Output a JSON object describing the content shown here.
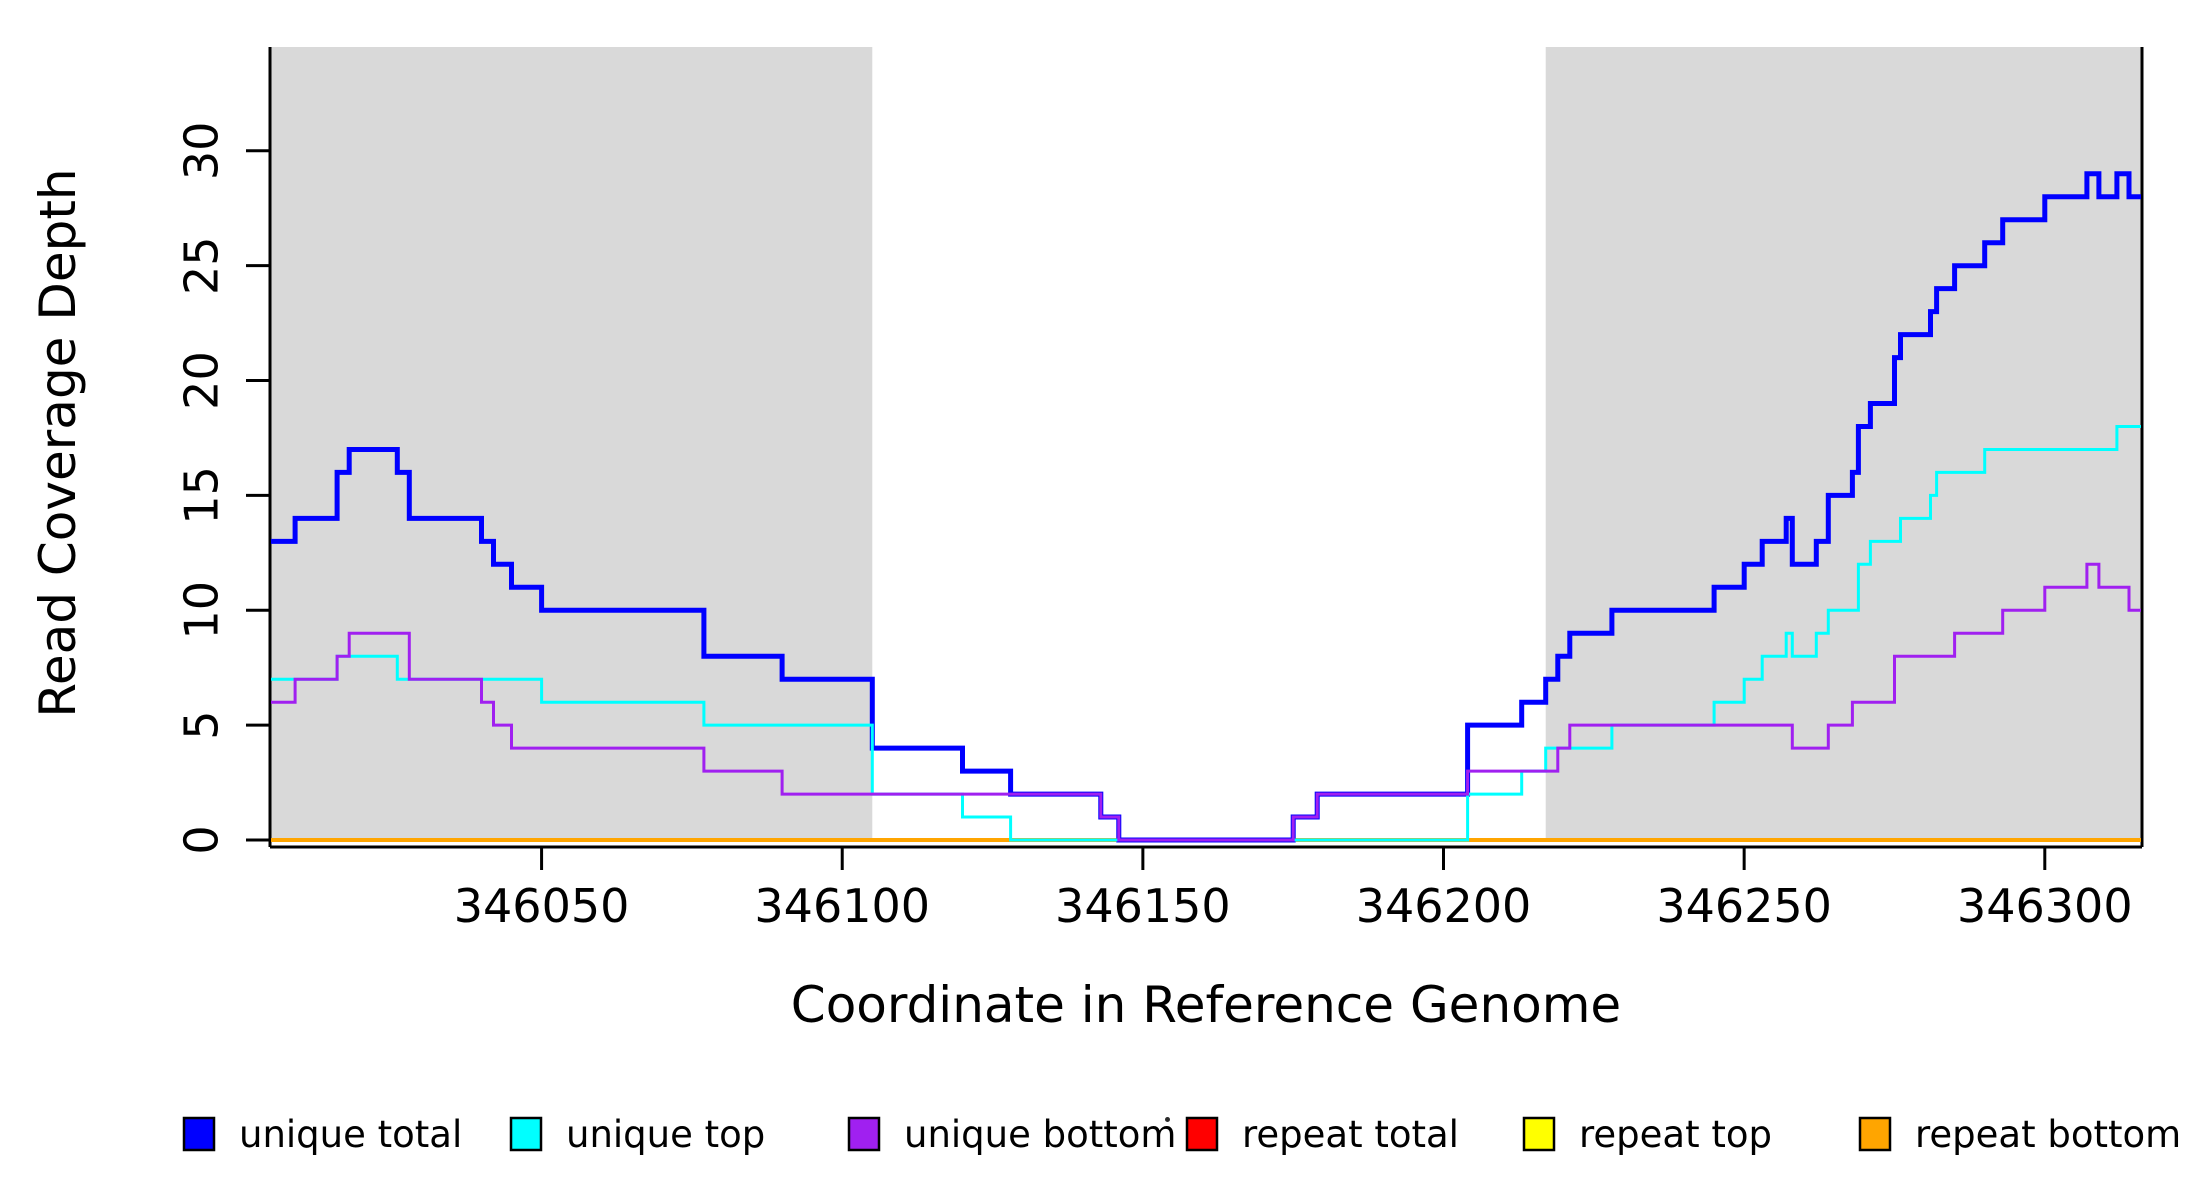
{
  "chart_data": {
    "type": "line",
    "subtype": "step",
    "title": "",
    "xlabel": "Coordinate in Reference Genome",
    "ylabel": "Read Coverage Depth",
    "x_range": [
      346005,
      346316
    ],
    "y_range": [
      0,
      34.5
    ],
    "x_ticks": [
      346050,
      346100,
      346150,
      346200,
      346250,
      346300
    ],
    "y_ticks": [
      0,
      5,
      10,
      15,
      20,
      25,
      30
    ],
    "grid": false,
    "legend_position": "bottom",
    "background_color": "#ffffff",
    "shade_color": "#d9d9d9",
    "shaded_regions": [
      {
        "from": 346005,
        "to": 346105
      },
      {
        "from": 346217,
        "to": 346316
      }
    ],
    "series": [
      {
        "name": "repeat total",
        "color": "#ff0000",
        "width": 3,
        "points": [
          [
            346005,
            0
          ]
        ]
      },
      {
        "name": "repeat top",
        "color": "#ffff00",
        "width": 3,
        "points": [
          [
            346005,
            0
          ]
        ]
      },
      {
        "name": "repeat bottom",
        "color": "#ffa500",
        "width": 4,
        "points": [
          [
            346005,
            0
          ]
        ]
      },
      {
        "name": "unique total",
        "color": "#0000ff",
        "width": 5,
        "points": [
          [
            346005,
            13
          ],
          [
            346009,
            14
          ],
          [
            346016,
            16
          ],
          [
            346018,
            17
          ],
          [
            346026,
            16
          ],
          [
            346028,
            14
          ],
          [
            346040,
            13
          ],
          [
            346042,
            12
          ],
          [
            346045,
            11
          ],
          [
            346050,
            10
          ],
          [
            346077,
            8
          ],
          [
            346090,
            7
          ],
          [
            346105,
            4
          ],
          [
            346120,
            3
          ],
          [
            346128,
            2
          ],
          [
            346143,
            1
          ],
          [
            346146,
            0
          ],
          [
            346175,
            1
          ],
          [
            346179,
            2
          ],
          [
            346204,
            5
          ],
          [
            346213,
            6
          ],
          [
            346217,
            7
          ],
          [
            346219,
            8
          ],
          [
            346221,
            9
          ],
          [
            346228,
            10
          ],
          [
            346245,
            11
          ],
          [
            346250,
            12
          ],
          [
            346253,
            13
          ],
          [
            346257,
            14
          ],
          [
            346258,
            12
          ],
          [
            346262,
            13
          ],
          [
            346264,
            15
          ],
          [
            346268,
            16
          ],
          [
            346269,
            18
          ],
          [
            346271,
            19
          ],
          [
            346275,
            21
          ],
          [
            346276,
            22
          ],
          [
            346281,
            23
          ],
          [
            346282,
            24
          ],
          [
            346285,
            25
          ],
          [
            346290,
            26
          ],
          [
            346293,
            27
          ],
          [
            346300,
            28
          ],
          [
            346307,
            29
          ],
          [
            346309,
            28
          ],
          [
            346312,
            29
          ],
          [
            346314,
            28
          ]
        ]
      },
      {
        "name": "unique top",
        "color": "#00ffff",
        "width": 3,
        "points": [
          [
            346005,
            7
          ],
          [
            346016,
            8
          ],
          [
            346026,
            7
          ],
          [
            346050,
            6
          ],
          [
            346077,
            5
          ],
          [
            346105,
            2
          ],
          [
            346120,
            1
          ],
          [
            346128,
            0
          ],
          [
            346204,
            2
          ],
          [
            346213,
            3
          ],
          [
            346217,
            4
          ],
          [
            346228,
            5
          ],
          [
            346245,
            6
          ],
          [
            346250,
            7
          ],
          [
            346253,
            8
          ],
          [
            346257,
            9
          ],
          [
            346258,
            8
          ],
          [
            346262,
            9
          ],
          [
            346264,
            10
          ],
          [
            346269,
            12
          ],
          [
            346271,
            13
          ],
          [
            346276,
            14
          ],
          [
            346281,
            15
          ],
          [
            346282,
            16
          ],
          [
            346290,
            17
          ],
          [
            346312,
            18
          ]
        ]
      },
      {
        "name": "unique bottom",
        "color": "#a020f0",
        "width": 3,
        "points": [
          [
            346005,
            6
          ],
          [
            346009,
            7
          ],
          [
            346016,
            8
          ],
          [
            346018,
            9
          ],
          [
            346028,
            7
          ],
          [
            346040,
            6
          ],
          [
            346042,
            5
          ],
          [
            346045,
            4
          ],
          [
            346077,
            3
          ],
          [
            346090,
            2
          ],
          [
            346143,
            1
          ],
          [
            346146,
            0
          ],
          [
            346175,
            1
          ],
          [
            346179,
            2
          ],
          [
            346204,
            3
          ],
          [
            346219,
            4
          ],
          [
            346221,
            5
          ],
          [
            346258,
            4
          ],
          [
            346264,
            5
          ],
          [
            346268,
            6
          ],
          [
            346275,
            8
          ],
          [
            346285,
            9
          ],
          [
            346293,
            10
          ],
          [
            346300,
            11
          ],
          [
            346307,
            12
          ],
          [
            346309,
            11
          ],
          [
            346314,
            10
          ]
        ]
      }
    ],
    "legend": [
      {
        "label": "unique total",
        "color": "#0000ff"
      },
      {
        "label": "unique top",
        "color": "#00ffff"
      },
      {
        "label": "unique bottom",
        "color": "#a020f0"
      },
      {
        "label": "repeat total",
        "color": "#ff0000"
      },
      {
        "label": "repeat top",
        "color": "#ffff00"
      },
      {
        "label": "repeat bottom",
        "color": "#ffa500"
      }
    ]
  }
}
